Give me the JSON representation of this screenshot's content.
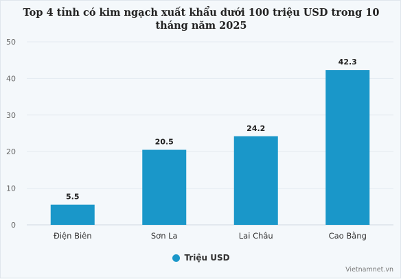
{
  "chart_data": {
    "type": "bar",
    "title": "Top 4 tỉnh có kim ngạch xuất khẩu dưới 100 triệu USD trong 10 tháng năm 2025",
    "categories": [
      "Điện Biên",
      "Sơn La",
      "Lai Châu",
      "Cao Bằng"
    ],
    "series": [
      {
        "name": "Triệu USD",
        "values": [
          5.5,
          20.5,
          24.2,
          42.3
        ]
      }
    ],
    "ylim": [
      0,
      50
    ],
    "yticks": [
      0,
      10,
      20,
      30,
      40,
      50
    ],
    "grid": true,
    "legend": "bottom-center",
    "bar_color": "#1a97c9",
    "source": "Vietnamnet.vn"
  }
}
